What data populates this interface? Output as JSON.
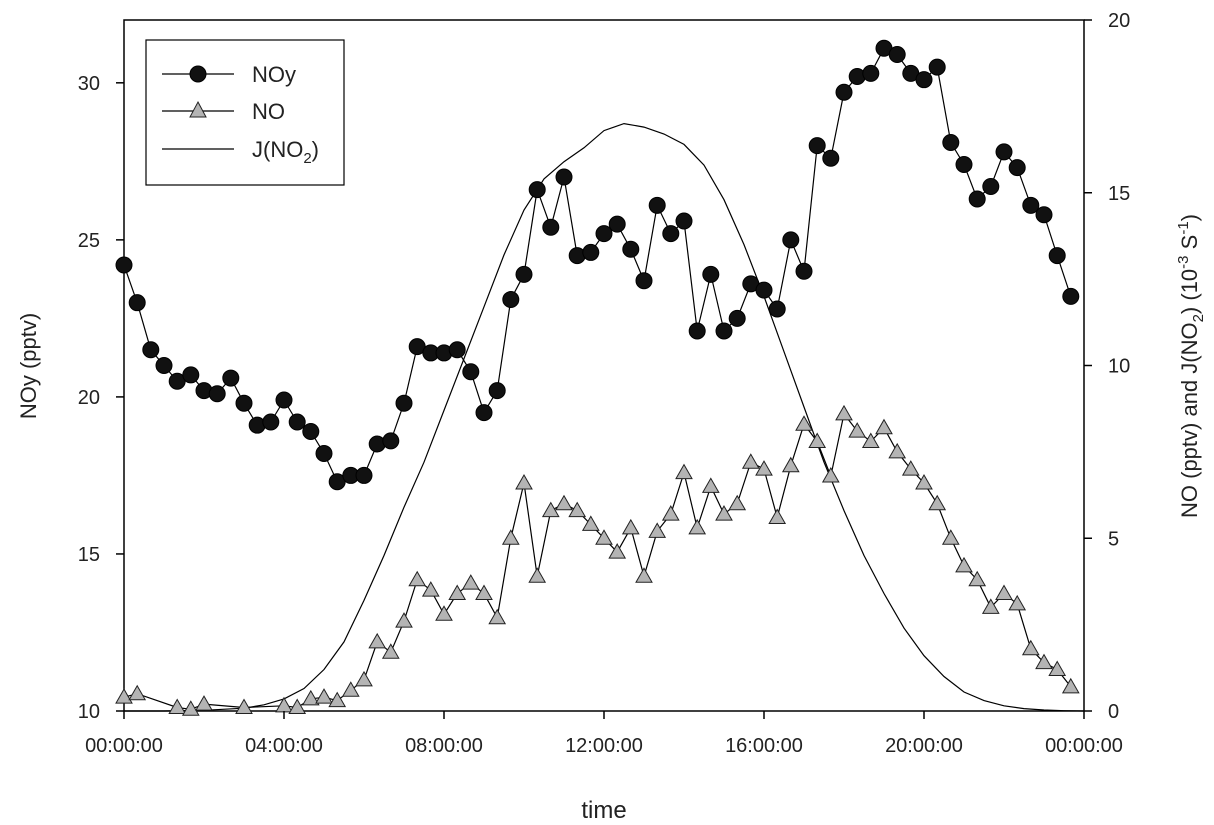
{
  "chart_data": {
    "type": "line",
    "title": "",
    "xlabel": "time",
    "ylabel": "NOy (pptv)",
    "ylabel2": "NO (pptv) and J(NO2) (10-3 S-1)",
    "ylabel2_parts": {
      "pre": "NO (pptv) and J(NO",
      "sub": "2",
      "mid": ") (10",
      "sup1": "-3",
      "mid2": " S",
      "sup2": "-1",
      "post": ")"
    },
    "xlim": [
      0,
      24
    ],
    "ylim": [
      10,
      32
    ],
    "y2lim": [
      0,
      20
    ],
    "x_tick_values": [
      0,
      4,
      8,
      12,
      16,
      20,
      24
    ],
    "x_tick_labels": [
      "00:00:00",
      "04:00:00",
      "08:00:00",
      "12:00:00",
      "16:00:00",
      "20:00:00",
      "00:00:00"
    ],
    "y_ticks": [
      10,
      15,
      20,
      25,
      30
    ],
    "y2_ticks": [
      0,
      5,
      10,
      15,
      20
    ],
    "legend": {
      "placement": "top-left",
      "entries": [
        {
          "label": "NOy"
        },
        {
          "label": "NO"
        },
        {
          "label_pre": "J(NO",
          "label_sub": "2",
          "label_post": ")"
        }
      ]
    },
    "series": [
      {
        "name": "NOy",
        "axis": "left",
        "marker": "circle",
        "x": [
          0,
          0.33,
          0.67,
          1.0,
          1.33,
          1.67,
          2.0,
          2.33,
          2.67,
          3.0,
          3.33,
          3.67,
          4.0,
          4.33,
          4.67,
          5.0,
          5.33,
          5.67,
          6.0,
          6.33,
          6.67,
          7.0,
          7.33,
          7.67,
          8.0,
          8.33,
          8.67,
          9.0,
          9.33,
          9.67,
          10.0,
          10.33,
          10.67,
          11.0,
          11.33,
          11.67,
          12.0,
          12.33,
          12.67,
          13.0,
          13.33,
          13.67,
          14.0,
          14.33,
          14.67,
          15.0,
          15.33,
          15.67,
          16.0,
          16.33,
          16.67,
          17.0,
          17.33,
          17.67,
          18.0,
          18.33,
          18.67,
          19.0,
          19.33,
          19.67,
          20.0,
          20.33,
          20.67,
          21.0,
          21.33,
          21.67,
          22.0,
          22.33,
          22.67,
          23.0,
          23.33,
          23.67
        ],
        "values": [
          24.2,
          23.0,
          21.5,
          21.0,
          20.5,
          20.7,
          20.2,
          20.1,
          20.6,
          19.8,
          19.1,
          19.2,
          19.9,
          19.2,
          18.9,
          18.2,
          17.3,
          17.5,
          17.5,
          18.5,
          18.6,
          19.8,
          21.6,
          21.4,
          21.4,
          21.5,
          20.8,
          19.5,
          20.2,
          23.1,
          23.9,
          26.6,
          25.4,
          27.0,
          24.5,
          24.6,
          25.2,
          25.5,
          24.7,
          23.7,
          26.1,
          25.2,
          25.6,
          22.1,
          23.9,
          22.1,
          22.5,
          23.6,
          23.4,
          22.8,
          25.0,
          24.0,
          28.0,
          27.6,
          29.7,
          30.2,
          30.3,
          31.1,
          30.9,
          30.3,
          30.1,
          30.5,
          28.1,
          27.4,
          26.3,
          26.7,
          27.8,
          27.3,
          26.1,
          25.8,
          24.5,
          23.2
        ]
      },
      {
        "name": "NO",
        "axis": "right",
        "marker": "triangle",
        "x": [
          0,
          0.33,
          1.33,
          1.67,
          2.0,
          3.0,
          4.0,
          4.33,
          4.67,
          5.0,
          5.33,
          5.67,
          6.0,
          6.33,
          6.67,
          7.0,
          7.33,
          7.67,
          8.0,
          8.33,
          8.67,
          9.0,
          9.33,
          9.67,
          10.0,
          10.33,
          10.67,
          11.0,
          11.33,
          11.67,
          12.0,
          12.33,
          12.67,
          13.0,
          13.33,
          13.67,
          14.0,
          14.33,
          14.67,
          15.0,
          15.33,
          15.67,
          16.0,
          16.33,
          16.67,
          17.0,
          17.33,
          17.67,
          18.0,
          18.33,
          18.67,
          19.0,
          19.33,
          19.67,
          20.0,
          20.33,
          20.67,
          21.0,
          21.33,
          21.67,
          22.0,
          22.33,
          22.67,
          23.0,
          23.33,
          23.67
        ],
        "values": [
          0.4,
          0.5,
          0.1,
          0.05,
          0.2,
          0.1,
          0.15,
          0.1,
          0.35,
          0.4,
          0.3,
          0.6,
          0.9,
          2.0,
          1.7,
          2.6,
          3.8,
          3.5,
          2.8,
          3.4,
          3.7,
          3.4,
          2.7,
          5.0,
          6.6,
          3.9,
          5.8,
          6.0,
          5.8,
          5.4,
          5.0,
          4.6,
          5.3,
          3.9,
          5.2,
          5.7,
          6.9,
          5.3,
          6.5,
          5.7,
          6.0,
          7.2,
          7.0,
          5.6,
          7.1,
          8.3,
          7.8,
          6.8,
          8.6,
          8.1,
          7.8,
          8.2,
          7.5,
          7.0,
          6.6,
          6.0,
          5.0,
          4.2,
          3.8,
          3.0,
          3.4,
          3.1,
          1.8,
          1.4,
          1.2,
          0.7
        ]
      },
      {
        "name": "J(NO2)",
        "axis": "right",
        "marker": "none",
        "x": [
          0,
          1,
          2,
          3,
          3.5,
          4,
          4.5,
          5,
          5.5,
          6,
          6.5,
          7,
          7.5,
          8,
          8.5,
          9,
          9.5,
          10,
          10.5,
          11,
          11.5,
          12,
          12.5,
          13,
          13.5,
          14,
          14.5,
          15,
          15.5,
          16,
          16.5,
          17,
          17.5,
          18,
          18.5,
          19,
          19.5,
          20,
          20.5,
          21,
          21.5,
          22,
          22.5,
          23,
          23.5,
          24
        ],
        "values": [
          0,
          0,
          0.02,
          0.08,
          0.18,
          0.35,
          0.65,
          1.2,
          2.0,
          3.2,
          4.5,
          5.9,
          7.2,
          8.7,
          10.2,
          11.7,
          13.2,
          14.5,
          15.4,
          15.9,
          16.3,
          16.8,
          17.0,
          16.9,
          16.7,
          16.4,
          15.8,
          14.8,
          13.5,
          12.0,
          10.4,
          8.8,
          7.2,
          5.8,
          4.5,
          3.4,
          2.4,
          1.6,
          1.0,
          0.55,
          0.3,
          0.15,
          0.07,
          0.03,
          0.01,
          0
        ]
      }
    ]
  }
}
